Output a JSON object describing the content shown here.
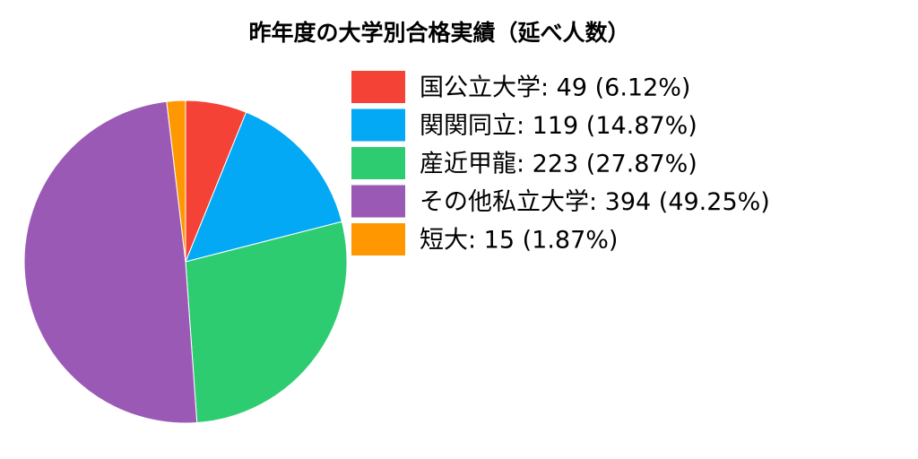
{
  "chart_data": {
    "type": "pie",
    "title": "昨年度の大学別合格実績（延べ人数）",
    "categories": [
      "国公立大学: 49 (6.12%)",
      "関関同立: 119 (14.87%)",
      "産近甲龍: 223 (27.87%)",
      "その他私立大学: 394 (49.25%)",
      "短大: 15 (1.87%)"
    ],
    "values": [
      49,
      119,
      223,
      394,
      15
    ],
    "colors": [
      "#f44336",
      "#03a9f4",
      "#2ecc71",
      "#9b59b6",
      "#ff9800"
    ],
    "legend": "upper right"
  }
}
